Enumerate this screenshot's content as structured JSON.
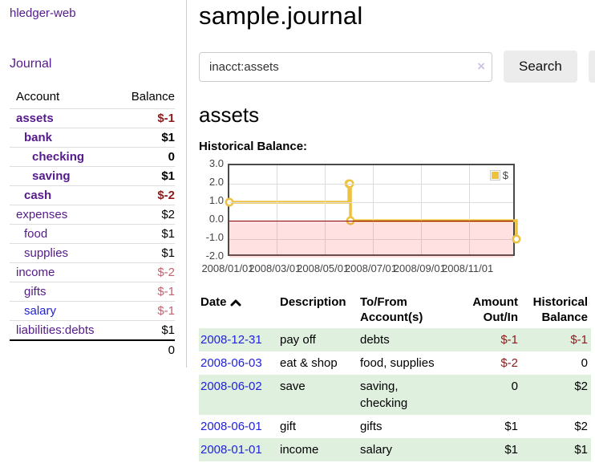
{
  "colors": {
    "link_purple": "#551a8b",
    "link_blue": "#2222dd",
    "negative_strong": "#8b1a1a",
    "negative_muted": "#c0636f",
    "row_stripe_green": "#dff0df",
    "series_gold": "#edc240",
    "button_gray": "#ececec"
  },
  "sidebar": {
    "brand": "hledger-web",
    "journal_link": "Journal",
    "accounts_table": {
      "headers": {
        "account": "Account",
        "balance": "Balance"
      },
      "rows": [
        {
          "name": "assets",
          "balance": "$-1",
          "indent": 0,
          "bold": true,
          "neg": "strong"
        },
        {
          "name": "bank",
          "balance": "$1",
          "indent": 1,
          "bold": true
        },
        {
          "name": "checking",
          "balance": "0",
          "indent": 2,
          "bold": true
        },
        {
          "name": "saving",
          "balance": "$1",
          "indent": 2,
          "bold": true
        },
        {
          "name": "cash",
          "balance": "$-2",
          "indent": 1,
          "bold": true,
          "neg": "strong"
        },
        {
          "name": "expenses",
          "balance": "$2",
          "indent": 0
        },
        {
          "name": "food",
          "balance": "$1",
          "indent": 1
        },
        {
          "name": "supplies",
          "balance": "$1",
          "indent": 1
        },
        {
          "name": "income",
          "balance": "$-2",
          "indent": 0,
          "neg": "muted"
        },
        {
          "name": "gifts",
          "balance": "$-1",
          "indent": 1,
          "neg": "muted"
        },
        {
          "name": "salary",
          "balance": "$-1",
          "indent": 1,
          "neg": "muted",
          "link_color": "blue"
        },
        {
          "name": "liabilities:debts",
          "balance": "$1",
          "indent": 0
        }
      ],
      "total": "0"
    }
  },
  "header": {
    "title": "sample.journal"
  },
  "search": {
    "value": "inacct:assets",
    "clear_icon": "×",
    "search_label": "Search",
    "help_label": "?"
  },
  "account_page": {
    "title": "assets",
    "chart_label": "Historical Balance:"
  },
  "chart_data": {
    "type": "line",
    "step": true,
    "title": "Historical Balance",
    "legend_position": "top-right",
    "grid": true,
    "ylim": [
      -2,
      3
    ],
    "x_max_day": 365,
    "y_ticks": [
      3.0,
      2.0,
      1.0,
      0.0,
      -1.0,
      -2.0
    ],
    "x_ticks": [
      {
        "day": 0,
        "label": "2008/01/01"
      },
      {
        "day": 60,
        "label": "2008/03/01"
      },
      {
        "day": 121,
        "label": "2008/05/01"
      },
      {
        "day": 182,
        "label": "2008/07/01"
      },
      {
        "day": 244,
        "label": "2008/09/01"
      },
      {
        "day": 305,
        "label": "2008/11/01"
      }
    ],
    "series": [
      {
        "name": "$",
        "color": "#edc240",
        "points": [
          {
            "date": "2008-01-01",
            "day": 0,
            "value": 1
          },
          {
            "date": "2008-06-01",
            "day": 152,
            "value": 2
          },
          {
            "date": "2008-06-02",
            "day": 153,
            "value": 2
          },
          {
            "date": "2008-06-03",
            "day": 154,
            "value": 0
          },
          {
            "date": "2008-12-31",
            "day": 365,
            "value": -1
          }
        ]
      }
    ],
    "negative_region_color": "rgba(255,90,90,0.18)",
    "zero_line_color": "#8b0000"
  },
  "register_table": {
    "headers": {
      "date": "Date",
      "sort_icon": "chevron-up",
      "description": "Description",
      "accounts": "To/From Account(s)",
      "amount": "Amount Out/In",
      "balance": "Historical Balance"
    },
    "rows": [
      {
        "date": "2008-12-31",
        "description": "pay off",
        "accounts": "debts",
        "amount": "$-1",
        "amount_neg": true,
        "balance": "$-1",
        "balance_neg": true
      },
      {
        "date": "2008-06-03",
        "description": "eat & shop",
        "accounts": "food, supplies",
        "amount": "$-2",
        "amount_neg": true,
        "balance": "0"
      },
      {
        "date": "2008-06-02",
        "description": "save",
        "accounts": "saving,\nchecking",
        "amount": "0",
        "balance": "$2"
      },
      {
        "date": "2008-06-01",
        "description": "gift",
        "accounts": "gifts",
        "amount": "$1",
        "balance": "$2"
      },
      {
        "date": "2008-01-01",
        "description": "income",
        "accounts": "salary",
        "amount": "$1",
        "balance": "$1"
      }
    ]
  }
}
